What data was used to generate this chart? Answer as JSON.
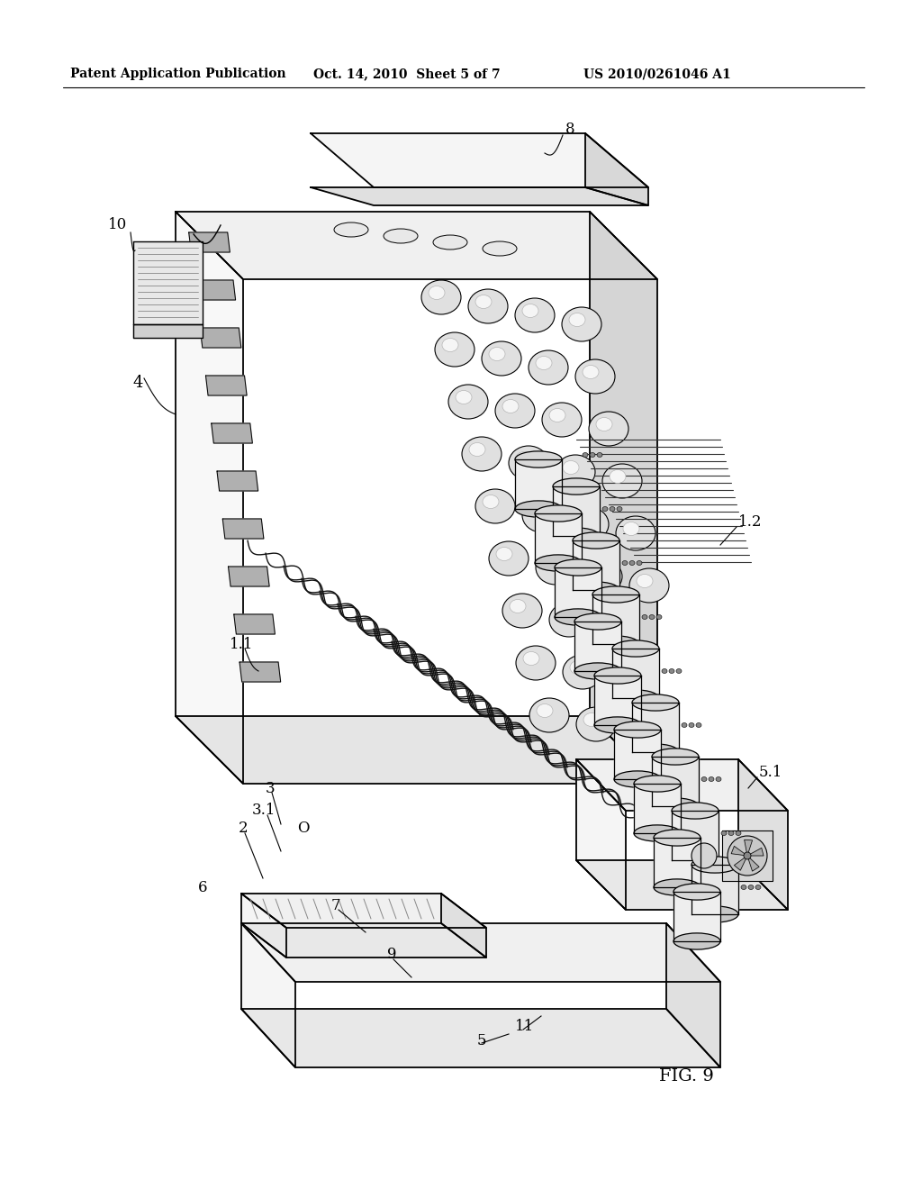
{
  "bg": "#ffffff",
  "black": "#000000",
  "header1": "Patent Application Publication",
  "header2": "Oct. 14, 2010  Sheet 5 of 7",
  "header3": "US 2010/0261046 A1",
  "fig_label": "FIG. 9",
  "lw_main": 1.3,
  "lw_thin": 0.7,
  "lw_thick": 1.8
}
